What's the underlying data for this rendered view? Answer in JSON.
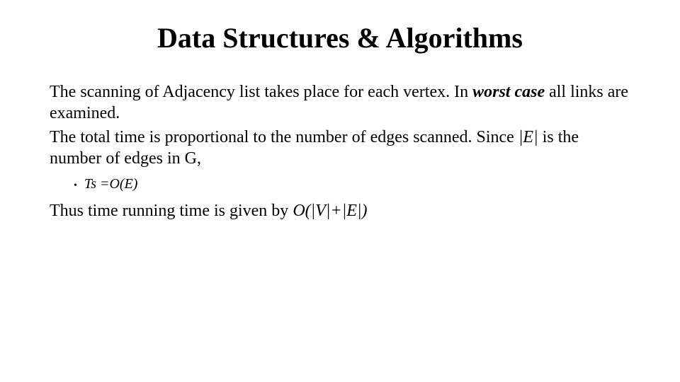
{
  "title": "Data Structures & Algorithms",
  "p1_a": "The scanning of Adjacency list takes place for each vertex. In ",
  "p1_b": "worst case",
  "p1_c": " all links are examined.",
  "p2_a": "The total time is proportional to the number of edges scanned. Since ",
  "p2_b": "|E|",
  "p2_c": " is the number of edges in G,",
  "bullet1": "Ts =O(E)",
  "p3_a": "Thus time running time is given by ",
  "p3_b": "O(|V|+|E|)",
  "style": {
    "title_fontsize": 40,
    "body_fontsize": 24,
    "bullet_fontsize": 20,
    "font_family": "Times New Roman",
    "text_color": "#000000",
    "background_color": "#ffffff"
  }
}
